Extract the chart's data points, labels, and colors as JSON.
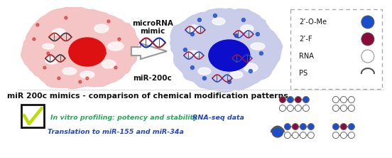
{
  "bg_color": "#ffffff",
  "cell1_color": "#f5c0c0",
  "cell2_color": "#c5c8e8",
  "nucleus1_color": "#dd1111",
  "nucleus2_color": "#0d0dcc",
  "ome_color": "#1a4fcc",
  "f2_color": "#8b0a3a",
  "rna_color": "#f8f8f8",
  "title_text": "miR 200c mimics - comparison of chemical modification patterns",
  "label_mirna": "microRNA\nmimic",
  "label_mir200c": "miR-200c",
  "text1": "In vitro profiling: potency and stability",
  "text1_color": "#22aa55",
  "text2": "RNA-seq data",
  "text2_color": "#2244cc",
  "text3": "Translation to miR-155 and miR-34a",
  "text3_color": "#2244cc"
}
